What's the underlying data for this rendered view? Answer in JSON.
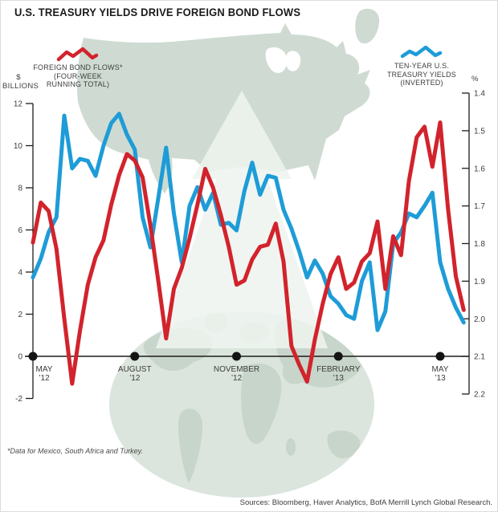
{
  "title": "U.S. TREASURY YIELDS DRIVE FOREIGN BOND FLOWS",
  "legend_left": {
    "line1": "FOREIGN BOND FLOWS*",
    "line2": "(FOUR-WEEK",
    "line3": "RUNNING TOTAL)"
  },
  "legend_right": {
    "line1": "TEN-YEAR U.S.",
    "line2": "TREASURY YIELDS",
    "line3": "(INVERTED)"
  },
  "footnote": "*Data for Mexico, South Africa and Turkey.",
  "sources": "Sources: Bloomberg, Haver Analytics, BofA Merrill Lynch Global Research.",
  "colors": {
    "flows_red": "#d2232c",
    "yields_blue": "#1e9cd7",
    "map_green": "#cfdbd2",
    "globe_green": "#dbe5dd",
    "continent_green": "#c8d5ca",
    "axis_black": "#1d1d1b",
    "text_grey": "#3c3c3c"
  },
  "chart_data": {
    "type": "line",
    "title": "U.S. TREASURY YIELDS DRIVE FOREIGN BOND FLOWS",
    "x_axis": {
      "tick_labels": [
        [
          "MAY",
          "’12"
        ],
        [
          "AUGUST",
          "’12"
        ],
        [
          "NOVEMBER",
          "’12"
        ],
        [
          "FEBRUARY",
          "’13"
        ],
        [
          "MAY",
          "’13"
        ]
      ],
      "tick_weeks": [
        0,
        13,
        26,
        39,
        52
      ]
    },
    "left_axis": {
      "symbol": "$",
      "unit": "BILLIONS",
      "ticks": [
        "12",
        "10",
        "8",
        "6",
        "4",
        "2",
        "0",
        "-2"
      ],
      "tick_values": [
        12,
        10,
        8,
        6,
        4,
        2,
        0,
        -2
      ],
      "range": [
        -2,
        12
      ]
    },
    "right_axis": {
      "symbol": "%",
      "ticks": [
        "1.4",
        "1.5",
        "1.6",
        "1.7",
        "1.8",
        "1.9",
        "2.0",
        "2.1",
        "2.2"
      ],
      "tick_values": [
        1.4,
        1.5,
        1.6,
        1.7,
        1.8,
        1.9,
        2.0,
        2.1,
        2.2
      ],
      "range": [
        1.4,
        2.2
      ],
      "inverted": true
    },
    "series": [
      {
        "name": "Foreign bond flows, four-week running total ($ billions)",
        "color": "#d2232c",
        "axis": "left",
        "values": [
          5.4,
          7.3,
          6.9,
          5.1,
          1.8,
          -1.3,
          1.2,
          3.4,
          4.7,
          5.5,
          7.2,
          8.6,
          9.6,
          9.3,
          8.5,
          6.2,
          3.6,
          0.85,
          3.2,
          4.2,
          5.6,
          7.2,
          8.9,
          8.0,
          6.7,
          5.2,
          3.4,
          3.6,
          4.6,
          5.2,
          5.3,
          6.3,
          4.5,
          0.5,
          -0.4,
          -1.2,
          0.8,
          2.5,
          3.9,
          4.7,
          3.2,
          3.5,
          4.5,
          4.9,
          6.4,
          3.2,
          5.7,
          4.8,
          8.3,
          10.4,
          10.9,
          9.0,
          11.1,
          7.0,
          3.8,
          2.2
        ]
      },
      {
        "name": "Ten-year U.S. Treasury yield (%, inverted scale)",
        "color": "#1e9cd7",
        "axis": "right",
        "values": [
          1.89,
          1.84,
          1.77,
          1.73,
          1.46,
          1.6,
          1.575,
          1.58,
          1.62,
          1.54,
          1.48,
          1.455,
          1.51,
          1.55,
          1.73,
          1.81,
          1.68,
          1.545,
          1.72,
          1.85,
          1.7,
          1.65,
          1.71,
          1.665,
          1.75,
          1.745,
          1.765,
          1.66,
          1.585,
          1.67,
          1.62,
          1.625,
          1.71,
          1.76,
          1.82,
          1.89,
          1.845,
          1.88,
          1.94,
          1.96,
          1.99,
          2.0,
          1.9,
          1.85,
          2.03,
          1.98,
          1.8,
          1.77,
          1.72,
          1.73,
          1.7,
          1.665,
          1.85,
          1.92,
          1.97,
          2.01
        ]
      }
    ]
  }
}
